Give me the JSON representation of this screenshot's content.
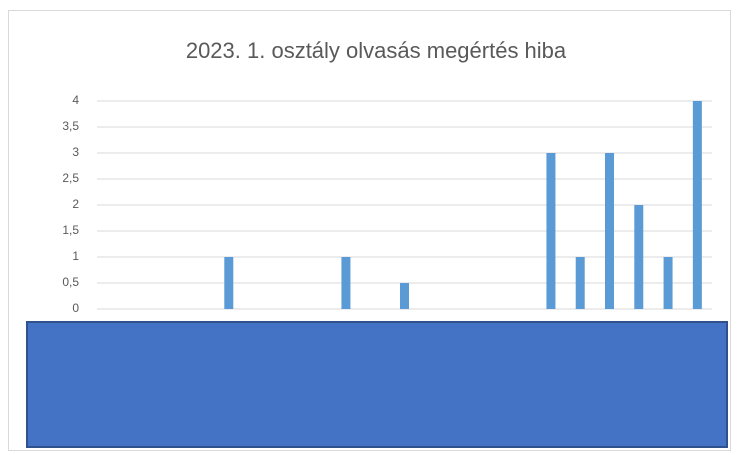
{
  "chart_data": {
    "type": "bar",
    "title": "2023. 1. osztály olvasás megértés hiba",
    "categories": [
      null,
      null,
      null,
      null,
      null,
      null,
      null,
      null,
      null,
      null,
      null,
      null,
      null,
      null,
      null,
      null,
      null,
      null,
      null,
      null,
      null
    ],
    "values": [
      0,
      0,
      0,
      0,
      1,
      0,
      0,
      0,
      1,
      0,
      0.5,
      0,
      0,
      0,
      0,
      3,
      1,
      3,
      2,
      1,
      4
    ],
    "color": "#5b9bd5",
    "ylim": [
      0,
      4
    ],
    "yticks": [
      0,
      {
        "value": 0.5,
        "label": "0,5"
      },
      1,
      {
        "value": 1.5,
        "label": "1,5"
      },
      2,
      {
        "value": 2.5,
        "label": "2,5"
      },
      3,
      {
        "value": 3.5,
        "label": "3,5"
      },
      4
    ],
    "grid": true
  }
}
